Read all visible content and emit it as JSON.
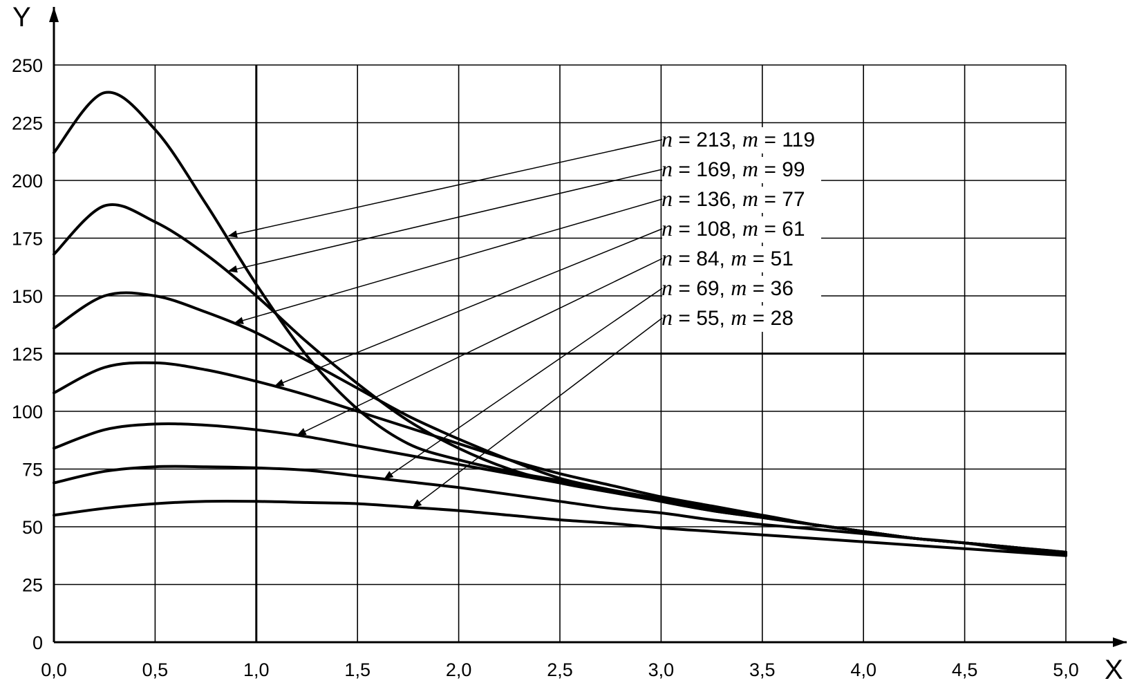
{
  "chart_data": {
    "type": "line",
    "title": "",
    "xlabel": "X",
    "ylabel": "Y",
    "xlim": [
      0,
      5
    ],
    "ylim": [
      0,
      250
    ],
    "x_ticks": [
      "0,0",
      "0,5",
      "1,0",
      "1,5",
      "2,0",
      "2,5",
      "3,0",
      "3,5",
      "4,0",
      "4,5",
      "5,0"
    ],
    "y_ticks": [
      "0",
      "25",
      "50",
      "75",
      "100",
      "125",
      "150",
      "175",
      "200",
      "225",
      "250"
    ],
    "grid": true,
    "legend_position": "top-right",
    "x": [
      0,
      0.25,
      0.5,
      0.75,
      1.0,
      1.25,
      1.5,
      1.75,
      2.0,
      2.25,
      2.5,
      2.75,
      3.0,
      3.25,
      3.5,
      3.75,
      4.0,
      4.25,
      4.5,
      4.75,
      5.0
    ],
    "series": [
      {
        "name": "n = 213, m = 119",
        "n": "213",
        "m": "119",
        "values": [
          212,
          238,
          222,
          190,
          155,
          124,
          101,
          86,
          79,
          74,
          70,
          66,
          62,
          58,
          54,
          51,
          48,
          45,
          43,
          41,
          39
        ]
      },
      {
        "name": "n = 169, m = 99",
        "n": "169",
        "m": "99",
        "values": [
          168,
          189,
          182,
          168,
          150,
          130,
          112,
          96,
          84,
          75,
          69,
          65,
          61,
          57,
          54,
          51,
          48,
          45,
          43,
          41,
          39
        ]
      },
      {
        "name": "n = 136, m = 77",
        "n": "136",
        "m": "77",
        "values": [
          136,
          150,
          150,
          143,
          134,
          122,
          110,
          98,
          88,
          79,
          71,
          66,
          61,
          57,
          54,
          51,
          48,
          45,
          43,
          41,
          38.5
        ]
      },
      {
        "name": "n = 108, m = 61",
        "n": "108",
        "m": "61",
        "values": [
          108,
          119,
          121,
          118,
          113,
          107,
          100,
          93,
          86,
          79,
          73,
          68,
          63,
          59,
          55,
          51,
          48,
          45,
          43,
          41,
          38.5
        ]
      },
      {
        "name": "n = 84, m = 51",
        "n": "84",
        "m": "51",
        "values": [
          84,
          92,
          94.5,
          94,
          92,
          89,
          85,
          81,
          77,
          73,
          69,
          65,
          62,
          58,
          55,
          51,
          48,
          45,
          43,
          41,
          38
        ]
      },
      {
        "name": "n = 69, m = 36",
        "n": "69",
        "m": "36",
        "values": [
          69,
          74,
          76,
          76,
          75.5,
          74.5,
          72,
          69.5,
          67,
          64,
          61,
          58,
          56,
          53,
          51,
          49,
          47,
          45,
          43,
          40,
          38
        ]
      },
      {
        "name": "n = 55, m = 28",
        "n": "55",
        "m": "28",
        "values": [
          55,
          58,
          60,
          61,
          61,
          60.5,
          60,
          58.5,
          57,
          55,
          53,
          51.5,
          49.5,
          48,
          46.5,
          45,
          43.5,
          42,
          40.5,
          39,
          37.5
        ]
      }
    ]
  }
}
